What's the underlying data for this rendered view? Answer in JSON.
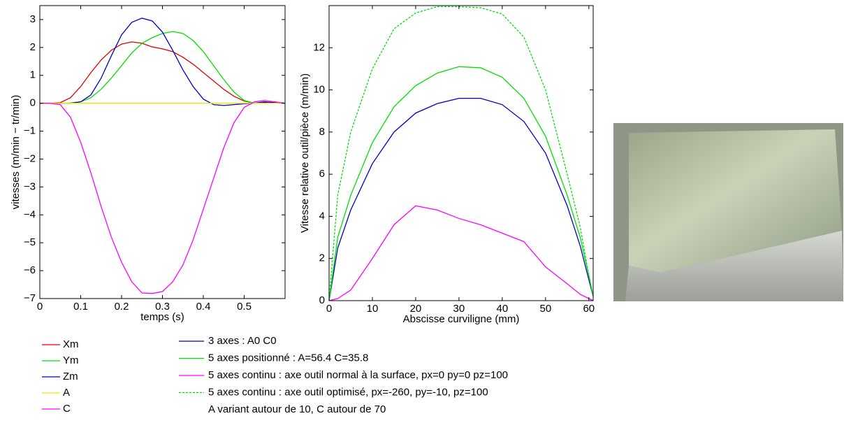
{
  "chart_data": [
    {
      "type": "line",
      "xlabel": "temps (s)",
      "ylabel": "vitesses (m/min − tr/min)",
      "xlim": [
        0,
        0.6
      ],
      "ylim": [
        -7,
        3.5
      ],
      "xticks": [
        0,
        0.1,
        0.2,
        0.3,
        0.4,
        0.5
      ],
      "yticks": [
        {
          "value": -7,
          "label": "−7"
        },
        {
          "value": -6,
          "label": "−6"
        },
        {
          "value": -5,
          "label": "−5"
        },
        {
          "value": -4,
          "label": "−4"
        },
        {
          "value": -3,
          "label": "−3"
        },
        {
          "value": -2,
          "label": "−2"
        },
        {
          "value": -1,
          "label": "−1"
        },
        0,
        1,
        2,
        3
      ],
      "x": [
        0,
        0.025,
        0.05,
        0.075,
        0.1,
        0.125,
        0.15,
        0.175,
        0.2,
        0.225,
        0.25,
        0.275,
        0.3,
        0.325,
        0.35,
        0.375,
        0.4,
        0.425,
        0.45,
        0.475,
        0.5,
        0.525,
        0.55,
        0.575,
        0.6
      ],
      "series": [
        {
          "name": "Xm",
          "color": "#e00000",
          "values": [
            0,
            0,
            0.02,
            0.2,
            0.6,
            1.1,
            1.55,
            1.9,
            2.12,
            2.2,
            2.15,
            2.02,
            1.95,
            1.85,
            1.65,
            1.4,
            1.1,
            0.8,
            0.5,
            0.25,
            0.08,
            0,
            0.02,
            0.02,
            0
          ]
        },
        {
          "name": "Ym",
          "color": "#00e000",
          "values": [
            0,
            0,
            0,
            0.01,
            0.05,
            0.2,
            0.5,
            0.9,
            1.35,
            1.8,
            2.15,
            2.35,
            2.5,
            2.57,
            2.5,
            2.25,
            1.85,
            1.35,
            0.85,
            0.4,
            0.1,
            0,
            0.05,
            0.02,
            0
          ]
        },
        {
          "name": "Zm",
          "color": "#0000c8",
          "values": [
            0,
            0,
            0,
            0,
            0.05,
            0.3,
            0.9,
            1.7,
            2.45,
            2.9,
            3.05,
            2.95,
            2.55,
            1.9,
            1.2,
            0.6,
            0.15,
            -0.05,
            -0.08,
            -0.05,
            -0.02,
            0,
            0.05,
            0.02,
            0
          ]
        },
        {
          "name": "A",
          "color": "#e8e800",
          "values": [
            0,
            0,
            0,
            0,
            0,
            0,
            0,
            0,
            0,
            0,
            0,
            0,
            0,
            0,
            0,
            0,
            0,
            0,
            0,
            0,
            0,
            0,
            0,
            0,
            0
          ]
        },
        {
          "name": "C",
          "color": "#ff00ff",
          "values": [
            0,
            0,
            -0.05,
            -0.5,
            -1.4,
            -2.5,
            -3.7,
            -4.8,
            -5.7,
            -6.4,
            -6.8,
            -6.82,
            -6.75,
            -6.4,
            -5.8,
            -4.9,
            -3.8,
            -2.7,
            -1.6,
            -0.7,
            -0.15,
            0.05,
            0.1,
            0.05,
            0
          ]
        }
      ]
    },
    {
      "type": "line",
      "xlabel": "Abscisse curviligne (mm)",
      "ylabel": "Vitesse relative outil/pièce (m/min)",
      "xlim": [
        0,
        61
      ],
      "ylim": [
        0,
        14
      ],
      "xticks": [
        0,
        10,
        20,
        30,
        40,
        50,
        60
      ],
      "yticks": [
        0,
        2,
        4,
        6,
        8,
        10,
        12
      ],
      "x": [
        0,
        2,
        5,
        10,
        15,
        20,
        25,
        30,
        35,
        40,
        45,
        50,
        55,
        58,
        60,
        61
      ],
      "series": [
        {
          "name": "3 axes : A0 C0",
          "color": "#0000c8",
          "values": [
            0,
            2.5,
            4.3,
            6.5,
            8,
            8.9,
            9.35,
            9.6,
            9.6,
            9.3,
            8.5,
            7,
            4.5,
            2.6,
            1,
            0.2
          ]
        },
        {
          "name": "5 axes positionné : A=56.4 C=35.8",
          "color": "#00e000",
          "values": [
            0,
            3,
            5,
            7.5,
            9.2,
            10.2,
            10.8,
            11.1,
            11.05,
            10.6,
            9.6,
            7.8,
            5,
            3,
            1.2,
            0.2
          ]
        },
        {
          "name": "5 axes continu : axe outil normal à la surface, px=0 py=0 pz=100",
          "color": "#ff00ff",
          "values": [
            0,
            0.1,
            0.5,
            2,
            3.6,
            4.5,
            4.3,
            3.9,
            3.6,
            3.2,
            2.8,
            1.6,
            0.8,
            0.3,
            0.1,
            0
          ]
        },
        {
          "name": "5 axes continu : axe outil optimisé, px=-260, py=-10, pz=100",
          "color": "#00e000",
          "dashed": true,
          "values": [
            0,
            5,
            8,
            11,
            12.9,
            13.65,
            13.95,
            13.95,
            13.9,
            13.6,
            12.5,
            10,
            6,
            3.5,
            1.2,
            0.2
          ]
        }
      ],
      "note": "A variant autour de 10, C autour de 70"
    }
  ]
}
